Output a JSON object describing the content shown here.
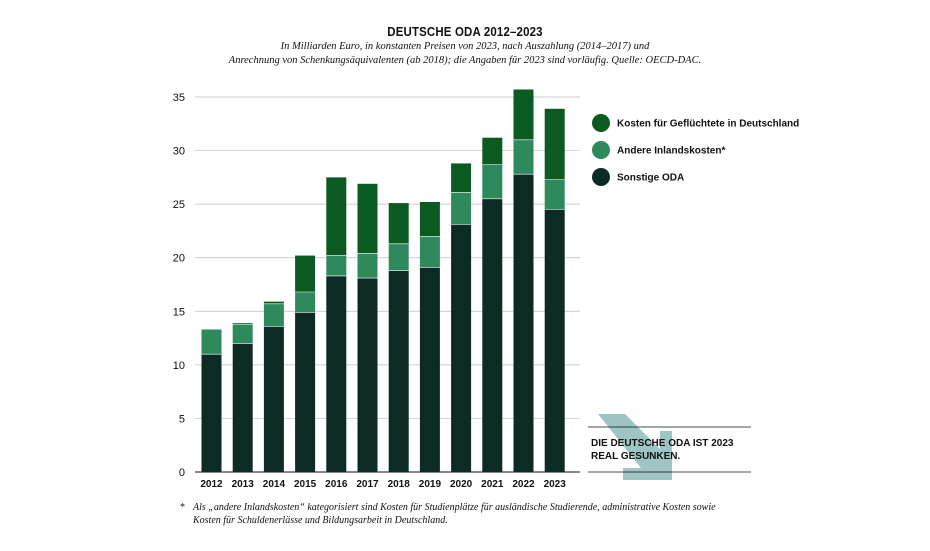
{
  "header": {
    "title": "DEUTSCHE ODA 2012–2023",
    "subtitle_line1": "In Milliarden Euro, in konstanten Preisen von 2023, nach Auszahlung (2014–2017) und",
    "subtitle_line2": "Anrechnung von Schenkungsäquivalenten (ab 2018); die Angaben für 2023 sind vorläufig. Quelle: OECD-DAC."
  },
  "colors": {
    "refugees": "#0b5a22",
    "inland": "#2e8a5c",
    "other": "#0c2b24",
    "arrow": "#9fc4c4",
    "grid": "#bdbdbd"
  },
  "chart_data": {
    "type": "bar",
    "stacked": true,
    "categories": [
      "2012",
      "2013",
      "2014",
      "2015",
      "2016",
      "2017",
      "2018",
      "2019",
      "2020",
      "2021",
      "2022",
      "2023"
    ],
    "series": [
      {
        "name": "Sonstige ODA",
        "values": [
          11.0,
          12.0,
          13.6,
          14.9,
          18.3,
          18.1,
          18.8,
          19.1,
          23.1,
          25.5,
          27.8,
          24.5
        ]
      },
      {
        "name": "Andere Inlandskosten*",
        "values": [
          2.3,
          1.8,
          2.1,
          1.9,
          1.9,
          2.3,
          2.5,
          2.9,
          3.0,
          3.2,
          3.2,
          2.8
        ]
      },
      {
        "name": "Kosten für Geflüchtete in Deutschland",
        "values": [
          0.0,
          0.1,
          0.2,
          3.4,
          7.3,
          6.5,
          3.8,
          3.2,
          2.7,
          2.5,
          4.7,
          6.6
        ]
      }
    ],
    "yticks": [
      "0",
      "5",
      "10",
      "15",
      "20",
      "25",
      "30",
      "35"
    ],
    "ylim": [
      0,
      35
    ],
    "grid": true,
    "legend": {
      "position": "right",
      "items": [
        "Kosten für Geflüchtete in Deutschland",
        "Andere Inlandskosten*",
        "Sonstige ODA"
      ]
    },
    "annotation": {
      "line1": "DIE DEUTSCHE ODA IST 2023",
      "line2": "REAL GESUNKEN."
    }
  },
  "footnote": {
    "star": "*",
    "text": "Als „andere Inlandskosten“ kategorisiert sind Kosten für Studienplätze für ausländische Studierende, administrative Kosten sowie Kosten für  Schuldenerlässe und Bildungsarbeit in Deutschland."
  }
}
